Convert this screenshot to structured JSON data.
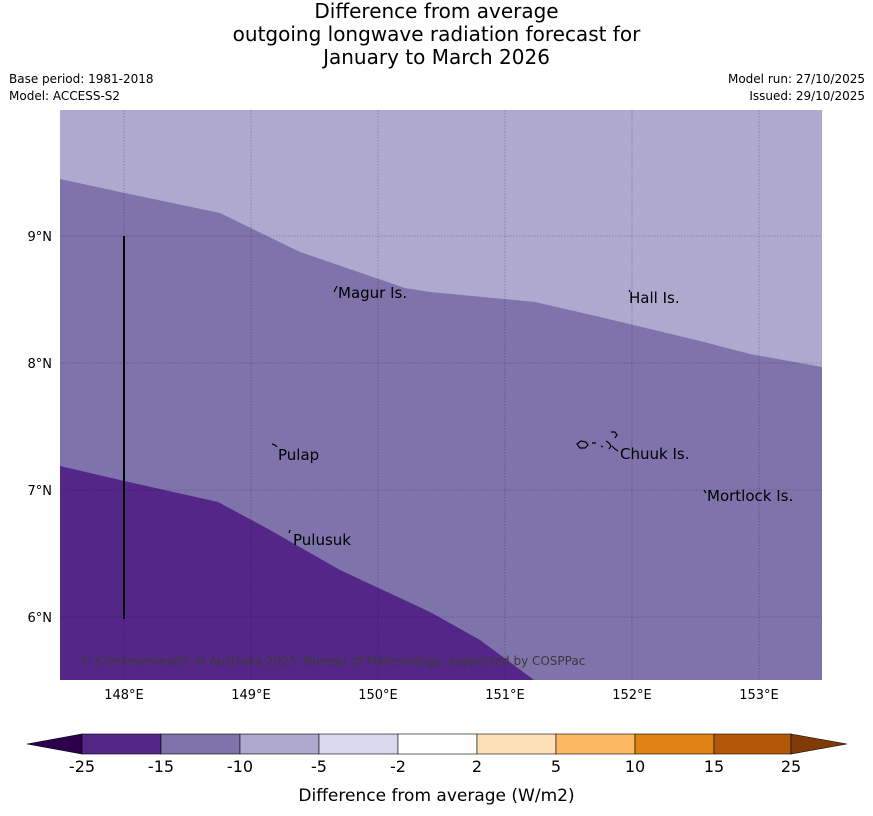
{
  "title": {
    "line1": "Difference from average",
    "line2": "outgoing longwave radiation forecast for",
    "line3": "January to March 2026"
  },
  "meta": {
    "base_period": "Base period: 1981-2018",
    "model": "Model: ACCESS-S2",
    "model_run": "Model run: 27/10/2025",
    "issued": "Issued: 29/10/2025"
  },
  "map": {
    "lat_labels": [
      "9°N",
      "8°N",
      "7°N",
      "6°N"
    ],
    "lon_labels": [
      "148°E",
      "149°E",
      "150°E",
      "151°E",
      "152°E",
      "153°E"
    ],
    "places": [
      "Magur Is.",
      "Hall Is.",
      "Pulap",
      "Chuuk Is.",
      "Mortlock Is.",
      "Pulusuk"
    ],
    "copyright": "© Commonwealth of Australia 2025, Bureau of Meteorology, supported by COSPPac",
    "colors": {
      "minus15_to_minus10": "#afa9d0",
      "minus25_to_minus15": "#7f73ac",
      "below_minus25": "#542687"
    }
  },
  "colorbar": {
    "label": "Difference from average (W/m2)",
    "ticks": [
      "-25",
      "-15",
      "-10",
      "-5",
      "-2",
      "2",
      "5",
      "10",
      "15",
      "25"
    ],
    "colors": {
      "under": "#2d004b",
      "c1": "#542687",
      "c2": "#7f73ac",
      "c3": "#afa9d0",
      "c4": "#d8daeb",
      "c5": "#ffffff",
      "c6": "#fee0b6",
      "c7": "#fdb863",
      "c8": "#e08214",
      "c9": "#b35806",
      "over": "#7f3b08"
    }
  }
}
